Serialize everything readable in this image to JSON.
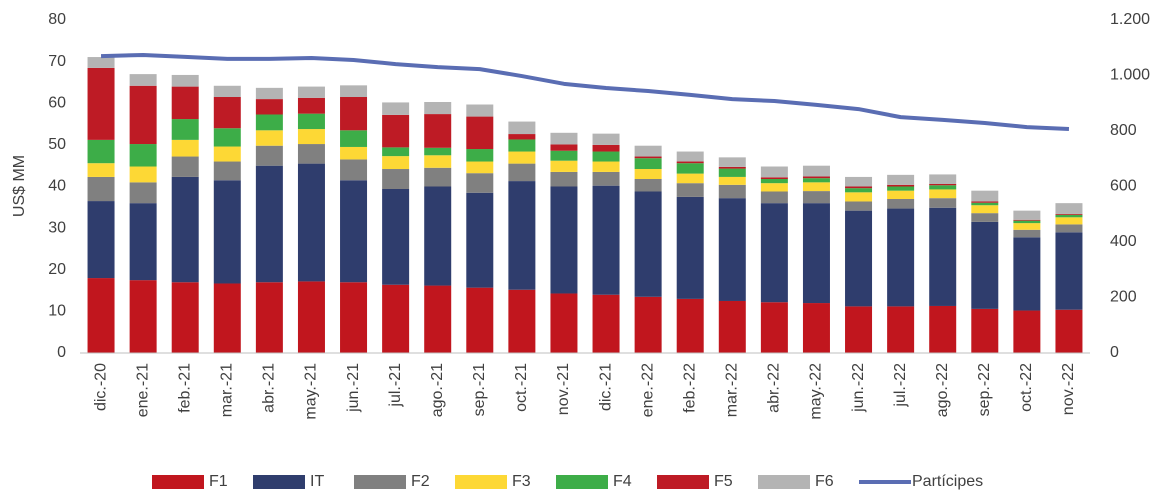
{
  "chart_data": {
    "type": "bar",
    "stacked": true,
    "y_label": "US$ MM",
    "categories": [
      "dic.-20",
      "ene.-21",
      "feb.-21",
      "mar.-21",
      "abr.-21",
      "may.-21",
      "jun.-21",
      "jul.-21",
      "ago.-21",
      "sep.-21",
      "oct.-21",
      "nov.-21",
      "dic.-21",
      "ene.-22",
      "feb.-22",
      "mar.-22",
      "abr.-22",
      "may.-22",
      "jun.-22",
      "jul.-22",
      "ago.-22",
      "sep.-22",
      "oct.-22",
      "nov.-22"
    ],
    "ylim": [
      0,
      80
    ],
    "yticks": [
      0,
      10,
      20,
      30,
      40,
      50,
      60,
      70,
      80
    ],
    "y2lim": [
      0,
      1200
    ],
    "y2ticks": [
      0,
      200,
      400,
      600,
      800,
      {
        "value": 1000,
        "label": "1.000"
      },
      {
        "value": 1200,
        "label": "1.200"
      }
    ],
    "grid": false,
    "legend": "bottom",
    "series": [
      {
        "name": "F1",
        "type": "bar",
        "color": "#c1161e",
        "values": [
          18,
          17.5,
          17,
          16.7,
          17,
          17.2,
          17,
          16.4,
          16.2,
          15.7,
          15.2,
          14.3,
          14,
          13.5,
          13,
          12.5,
          12.2,
          12,
          11.2,
          11.2,
          11.3,
          10.6,
          10.2,
          10.4
        ]
      },
      {
        "name": "IT",
        "type": "bar",
        "color": "#2f3d6d",
        "values": [
          18.5,
          18.5,
          25.3,
          24.8,
          28,
          28.3,
          24.5,
          23,
          23.8,
          22.8,
          26.1,
          25.7,
          26.2,
          25.3,
          24.5,
          24.7,
          23.8,
          24,
          23,
          23.5,
          23.6,
          20.9,
          17.6,
          18.6
        ]
      },
      {
        "name": "F2",
        "type": "bar",
        "color": "#808080",
        "values": [
          5.8,
          5,
          4.9,
          4.5,
          4.8,
          4.7,
          5,
          4.8,
          4.5,
          4.7,
          4.2,
          3.5,
          3.3,
          3,
          3.3,
          3.2,
          2.8,
          2.9,
          2.2,
          2.3,
          2.3,
          2.1,
          1.8,
          1.9
        ]
      },
      {
        "name": "F3",
        "type": "bar",
        "color": "#fdd835",
        "values": [
          3.3,
          3.8,
          4,
          3.6,
          3.7,
          3.6,
          3,
          3.1,
          3,
          2.8,
          2.9,
          2.7,
          2.5,
          2.4,
          2.3,
          1.9,
          2,
          2.1,
          2.2,
          2,
          2.1,
          1.9,
          1.6,
          1.7
        ]
      },
      {
        "name": "F4",
        "type": "bar",
        "color": "#3dad48",
        "values": [
          5.6,
          5.4,
          5,
          4.4,
          3.8,
          3.7,
          4,
          2.1,
          1.8,
          3,
          2.9,
          2.4,
          2.4,
          2.6,
          2.5,
          2,
          1,
          1,
          1,
          1,
          1,
          0.6,
          0.6,
          0.6
        ]
      },
      {
        "name": "F5",
        "type": "bar",
        "color": "#be1b25",
        "values": [
          17.3,
          14,
          7.8,
          7.5,
          3.7,
          3.8,
          8,
          7.8,
          8.1,
          7.8,
          1.3,
          1.5,
          1.6,
          0.4,
          0.4,
          0.4,
          0.4,
          0.4,
          0.4,
          0.4,
          0.3,
          0.3,
          0.2,
          0.2
        ]
      },
      {
        "name": "F6",
        "type": "bar",
        "color": "#b4b4b4",
        "values": [
          2.6,
          2.8,
          2.8,
          2.7,
          2.7,
          2.7,
          2.8,
          3,
          2.9,
          2.9,
          3,
          2.8,
          2.7,
          2.6,
          2.4,
          2.3,
          2.6,
          2.6,
          2.3,
          2.4,
          2.3,
          2.6,
          2.2,
          2.6
        ]
      },
      {
        "name": "Partícipes",
        "type": "line",
        "axis": "y2",
        "color": "#5a6db3",
        "values": [
          1070,
          1074,
          1067,
          1060,
          1060,
          1063,
          1056,
          1041,
          1030,
          1023,
          998,
          970,
          955,
          944,
          930,
          915,
          908,
          894,
          879,
          850,
          840,
          829,
          814,
          807
        ]
      }
    ]
  }
}
